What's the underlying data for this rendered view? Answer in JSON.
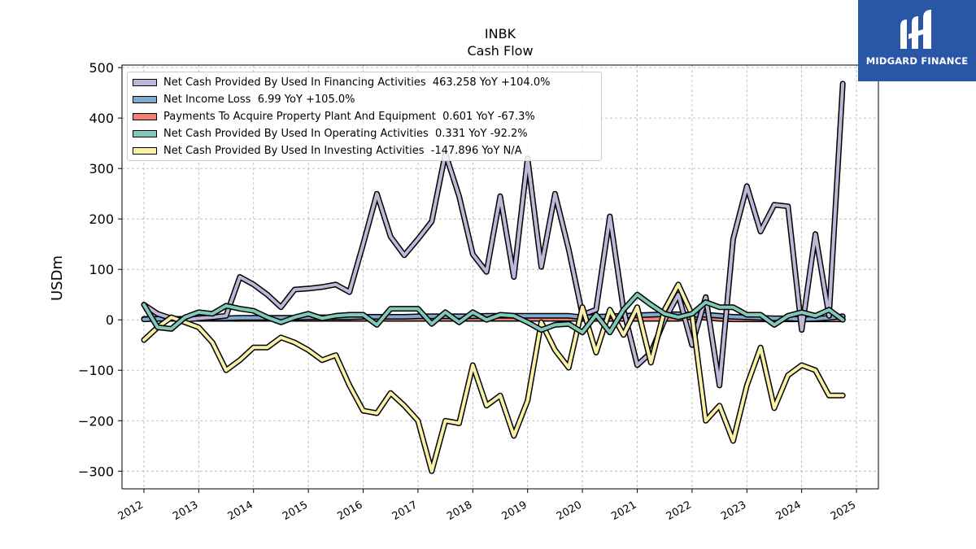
{
  "header": {
    "ticker": "INBK",
    "title": "Cash Flow"
  },
  "logo": {
    "text": "MIDGARD FINANCE",
    "background": "#2a56a8",
    "icon": "midgard-m-logo-icon"
  },
  "chart_data": {
    "type": "line",
    "title": "INBK",
    "subtitle": "Cash Flow",
    "xlabel": "",
    "ylabel": "USDm",
    "xlim": [
      2011.6,
      2025.4
    ],
    "ylim": [
      -335,
      505
    ],
    "x_ticks": [
      "2012",
      "2013",
      "2014",
      "2015",
      "2016",
      "2017",
      "2018",
      "2019",
      "2020",
      "2021",
      "2022",
      "2023",
      "2024",
      "2025"
    ],
    "y_ticks": [
      "500",
      "400",
      "300",
      "200",
      "100",
      "0",
      "−100",
      "−200",
      "−300"
    ],
    "y_tick_values": [
      500,
      400,
      300,
      200,
      100,
      0,
      -100,
      -200,
      -300
    ],
    "grid": true,
    "legend_position": "top-left",
    "x": [
      2012.0,
      2012.25,
      2012.5,
      2012.75,
      2013.0,
      2013.25,
      2013.5,
      2013.75,
      2014.0,
      2014.25,
      2014.5,
      2014.75,
      2015.0,
      2015.25,
      2015.5,
      2015.75,
      2016.0,
      2016.25,
      2016.5,
      2016.75,
      2017.0,
      2017.25,
      2017.5,
      2017.75,
      2018.0,
      2018.25,
      2018.5,
      2018.75,
      2019.0,
      2019.25,
      2019.5,
      2019.75,
      2020.0,
      2020.25,
      2020.5,
      2020.75,
      2021.0,
      2021.25,
      2021.5,
      2021.75,
      2022.0,
      2022.25,
      2022.5,
      2022.75,
      2023.0,
      2023.25,
      2023.5,
      2023.75,
      2024.0,
      2024.25,
      2024.5,
      2024.75
    ],
    "series": [
      {
        "name": "Net Cash Provided By Used In Financing Activities",
        "legend_label": "Net Cash Provided By Used In Financing Activities  463.258 YoY +104.0%",
        "color": "#bcb8d8",
        "values": [
          30,
          12,
          3,
          0,
          3,
          5,
          8,
          85,
          70,
          50,
          25,
          60,
          62,
          65,
          70,
          55,
          150,
          250,
          165,
          128,
          160,
          195,
          330,
          245,
          130,
          95,
          245,
          85,
          320,
          105,
          250,
          140,
          10,
          20,
          205,
          20,
          -90,
          -65,
          0,
          50,
          -50,
          45,
          -130,
          160,
          265,
          175,
          228,
          225,
          -20,
          170,
          8,
          468
        ]
      },
      {
        "name": "Net Income Loss",
        "legend_label": "Net Income Loss  6.99 YoY +105.0%",
        "color": "#80aad0",
        "values": [
          1,
          2,
          2,
          2,
          3,
          3,
          3,
          4,
          4,
          4,
          4,
          4,
          5,
          5,
          5,
          5,
          6,
          6,
          6,
          6,
          7,
          7,
          7,
          7,
          7,
          8,
          8,
          8,
          8,
          8,
          8,
          8,
          5,
          6,
          7,
          8,
          9,
          10,
          11,
          11,
          10,
          10,
          8,
          6,
          5,
          4,
          3,
          3,
          1,
          2,
          4,
          7
        ]
      },
      {
        "name": "Payments To Acquire Property Plant And Equipment",
        "legend_label": "Payments To Acquire Property Plant And Equipment  0.601 YoY -67.3%",
        "color": "#f08070",
        "values": [
          2,
          2,
          2,
          2,
          2,
          2,
          2,
          2,
          2,
          2,
          2,
          2,
          2,
          2,
          2,
          2,
          2,
          2,
          2,
          2,
          2,
          2,
          2,
          2,
          2,
          2,
          2,
          2,
          2,
          2,
          2,
          2,
          2,
          2,
          2,
          2,
          2,
          2,
          2,
          2,
          6,
          4,
          2,
          1,
          1,
          1,
          1,
          1,
          1,
          1,
          1,
          1
        ]
      },
      {
        "name": "Net Cash Provided By Used In Operating Activities",
        "legend_label": "Net Cash Provided By Used In Operating Activities  0.331 YoY -92.2%",
        "color": "#80c8b8",
        "values": [
          30,
          -15,
          -18,
          5,
          15,
          12,
          28,
          22,
          18,
          5,
          -5,
          5,
          12,
          3,
          8,
          10,
          10,
          -10,
          22,
          22,
          22,
          -8,
          15,
          -5,
          15,
          0,
          10,
          8,
          -5,
          -20,
          -10,
          -8,
          -25,
          10,
          -25,
          20,
          50,
          30,
          12,
          5,
          12,
          35,
          25,
          25,
          10,
          10,
          -10,
          8,
          15,
          8,
          20,
          0
        ]
      },
      {
        "name": "Net Cash Provided By Used In Investing Activities",
        "legend_label": "Net Cash Provided By Used In Investing Activities  -147.896 YoY N/A",
        "color": "#f8f0a8",
        "values": [
          -40,
          -15,
          5,
          -5,
          -15,
          -45,
          -100,
          -80,
          -55,
          -55,
          -35,
          -45,
          -60,
          -80,
          -70,
          -130,
          -180,
          -185,
          -145,
          -170,
          -200,
          -300,
          -200,
          -205,
          -90,
          -170,
          -150,
          -230,
          -160,
          -5,
          -60,
          -95,
          25,
          -65,
          20,
          -30,
          25,
          -85,
          20,
          70,
          10,
          -200,
          -170,
          -240,
          -130,
          -55,
          -175,
          -110,
          -90,
          -100,
          -150,
          -150
        ]
      }
    ]
  }
}
